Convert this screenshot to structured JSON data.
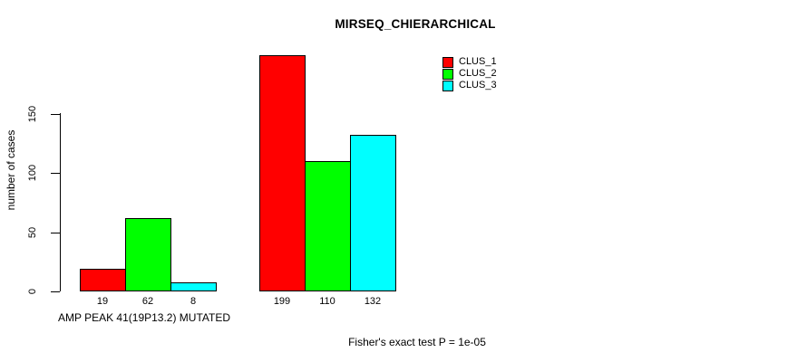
{
  "chart_data": {
    "type": "bar",
    "title": "MIRSEQ_CHIERARCHICAL",
    "ylabel": "number of cases",
    "xlabel": "",
    "ylim": [
      0,
      200
    ],
    "yticks": [
      0,
      50,
      100,
      150
    ],
    "grid": false,
    "legend_position": "top-right",
    "legend": [
      {
        "label": "CLUS_1",
        "color": "#ff0000"
      },
      {
        "label": "CLUS_2",
        "color": "#00ff00"
      },
      {
        "label": "CLUS_3",
        "color": "#00ffff"
      }
    ],
    "groups": [
      {
        "label": "AMP PEAK 41(19P13.2) MUTATED",
        "values": [
          19,
          62,
          8
        ]
      },
      {
        "label": "",
        "values": [
          199,
          110,
          132
        ]
      }
    ],
    "bar_value_labels_shown": true,
    "annotation": "Fisher's exact test P = 1e-05"
  }
}
